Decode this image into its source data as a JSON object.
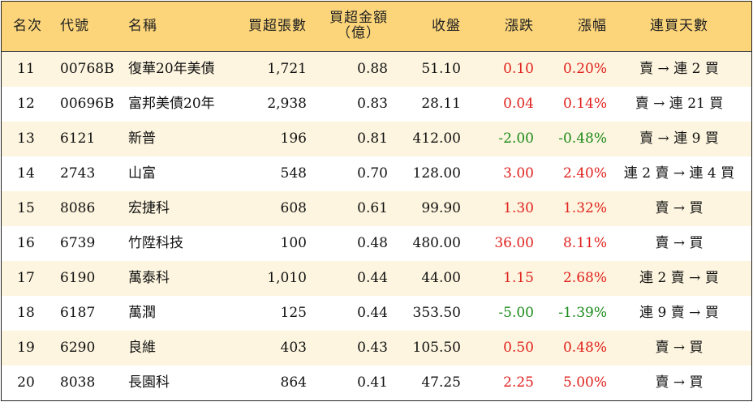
{
  "headers": {
    "rank": "名次",
    "code": "代號",
    "name": "名稱",
    "net_lots": "買超張數",
    "net_amount_line1": "買超金額",
    "net_amount_line2": "（億）",
    "close": "收盤",
    "change": "漲跌",
    "pct": "漲幅",
    "streak": "連買天數"
  },
  "colors": {
    "header_bg": "#fcd57a",
    "stripe_bg": "#fdf5df",
    "up": "#e0211d",
    "down": "#1a8a1a"
  },
  "rows": [
    {
      "rank": "11",
      "code": "00768B",
      "name": "復華20年美債",
      "net_lots": "1,721",
      "net_amount": "0.88",
      "close": "51.10",
      "change": "0.10",
      "pct": "0.20%",
      "dir": "up",
      "streak": "賣 → 連 2 買"
    },
    {
      "rank": "12",
      "code": "00696B",
      "name": "富邦美債20年",
      "net_lots": "2,938",
      "net_amount": "0.83",
      "close": "28.11",
      "change": "0.04",
      "pct": "0.14%",
      "dir": "up",
      "streak": "賣 → 連 21 買"
    },
    {
      "rank": "13",
      "code": "6121",
      "name": "新普",
      "net_lots": "196",
      "net_amount": "0.81",
      "close": "412.00",
      "change": "-2.00",
      "pct": "-0.48%",
      "dir": "down",
      "streak": "賣 → 連 9 買"
    },
    {
      "rank": "14",
      "code": "2743",
      "name": "山富",
      "net_lots": "548",
      "net_amount": "0.70",
      "close": "128.00",
      "change": "3.00",
      "pct": "2.40%",
      "dir": "up",
      "streak": "連 2 賣 → 連 4 買"
    },
    {
      "rank": "15",
      "code": "8086",
      "name": "宏捷科",
      "net_lots": "608",
      "net_amount": "0.61",
      "close": "99.90",
      "change": "1.30",
      "pct": "1.32%",
      "dir": "up",
      "streak": "賣 → 買"
    },
    {
      "rank": "16",
      "code": "6739",
      "name": "竹陞科技",
      "net_lots": "100",
      "net_amount": "0.48",
      "close": "480.00",
      "change": "36.00",
      "pct": "8.11%",
      "dir": "up",
      "streak": "賣 → 買"
    },
    {
      "rank": "17",
      "code": "6190",
      "name": "萬泰科",
      "net_lots": "1,010",
      "net_amount": "0.44",
      "close": "44.00",
      "change": "1.15",
      "pct": "2.68%",
      "dir": "up",
      "streak": "連 2 賣 → 買"
    },
    {
      "rank": "18",
      "code": "6187",
      "name": "萬潤",
      "net_lots": "125",
      "net_amount": "0.44",
      "close": "353.50",
      "change": "-5.00",
      "pct": "-1.39%",
      "dir": "down",
      "streak": "連 9 賣 → 買"
    },
    {
      "rank": "19",
      "code": "6290",
      "name": "良維",
      "net_lots": "403",
      "net_amount": "0.43",
      "close": "105.50",
      "change": "0.50",
      "pct": "0.48%",
      "dir": "up",
      "streak": "賣 → 買"
    },
    {
      "rank": "20",
      "code": "8038",
      "name": "長園科",
      "net_lots": "864",
      "net_amount": "0.41",
      "close": "47.25",
      "change": "2.25",
      "pct": "5.00%",
      "dir": "up",
      "streak": "賣 → 買"
    }
  ]
}
